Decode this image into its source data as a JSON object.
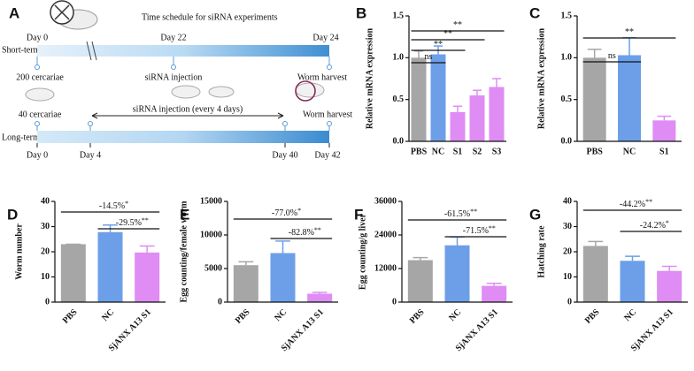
{
  "schematic": {
    "panel": "A",
    "title": "Time schedule for siRNA experiments",
    "short_term": {
      "label": "Short-term",
      "days": [
        "Day 0",
        "Day 22",
        "Day 24"
      ],
      "events": [
        "200 cercariae",
        "siRNA injection",
        "Worm harvest"
      ]
    },
    "long_term": {
      "label": "Long-term",
      "days": [
        "Day 0",
        "Day 4",
        "Day 40",
        "Day 42"
      ],
      "events": [
        "40 cercariae",
        "siRNA injection (every 4 days)",
        "Worm harvest"
      ]
    }
  },
  "chart_data": [
    {
      "panel": "B",
      "type": "bar",
      "y_label": "Relative mRNA expression",
      "categories": [
        "PBS",
        "NC",
        "S1",
        "S2",
        "S3"
      ],
      "values": [
        1.0,
        1.04,
        0.35,
        0.55,
        0.65
      ],
      "errors": [
        0.08,
        0.1,
        0.07,
        0.06,
        0.1
      ],
      "colors": [
        "#a6a6a6",
        "#6c9fe8",
        "#df8cf4",
        "#df8cf4",
        "#df8cf4"
      ],
      "ylim": [
        0,
        1.5
      ],
      "yticks": [
        {
          "value": 0,
          "label": "0.0"
        },
        {
          "value": 0.5,
          "label": "0.5"
        },
        {
          "value": 1,
          "label": "1.0"
        },
        {
          "value": 1.5,
          "label": "1.5"
        }
      ],
      "annotations": [
        {
          "label": "ns"
        },
        {
          "label": "**"
        },
        {
          "label": "**"
        },
        {
          "label": "**"
        }
      ]
    },
    {
      "panel": "C",
      "type": "bar",
      "y_label": "Relative mRNA expression",
      "categories": [
        "PBS",
        "NC",
        "S1"
      ],
      "values": [
        1.0,
        1.03,
        0.25
      ],
      "errors": [
        0.1,
        0.21,
        0.05
      ],
      "colors": [
        "#a6a6a6",
        "#6c9fe8",
        "#df8cf4"
      ],
      "ylim": [
        0,
        1.5
      ],
      "yticks": [
        {
          "value": 0,
          "label": "0.0"
        },
        {
          "value": 0.5,
          "label": "0.5"
        },
        {
          "value": 1,
          "label": "1.0"
        },
        {
          "value": 1.5,
          "label": "1.5"
        }
      ],
      "annotations": [
        {
          "label": "ns"
        },
        {
          "label": "**"
        }
      ]
    },
    {
      "panel": "D",
      "type": "bar",
      "y_label": "Worm number",
      "categories": [
        "PBS",
        "NC",
        "SjANX A13 S1"
      ],
      "values": [
        23,
        27.8,
        19.7
      ],
      "errors": [
        0,
        2.8,
        2.6
      ],
      "colors": [
        "#a6a6a6",
        "#6c9fe8",
        "#df8cf4"
      ],
      "ylim": [
        0,
        40
      ],
      "yticks": [
        0,
        10,
        20,
        30,
        40
      ],
      "annotations": [
        {
          "label": "-14.5%",
          "stars": "*"
        },
        {
          "label": "-29.5%",
          "stars": "**"
        }
      ]
    },
    {
      "panel": "E",
      "type": "bar",
      "y_label": "Egg counting/female worm",
      "categories": [
        "PBS",
        "NC",
        "SjANX A13 S1"
      ],
      "values": [
        5500,
        7300,
        1250
      ],
      "errors": [
        500,
        1800,
        200
      ],
      "colors": [
        "#a6a6a6",
        "#6c9fe8",
        "#df8cf4"
      ],
      "ylim": [
        0,
        15000
      ],
      "yticks": [
        0,
        5000,
        10000,
        15000
      ],
      "annotations": [
        {
          "label": "-77.0%",
          "stars": "*"
        },
        {
          "label": "-82.8%",
          "stars": "**"
        }
      ]
    },
    {
      "panel": "F",
      "type": "bar",
      "y_label": "Egg counting/g liver",
      "categories": [
        "PBS",
        "NC",
        "SjANX A13 S1"
      ],
      "values": [
        15000,
        20300,
        5800
      ],
      "errors": [
        900,
        3000,
        900
      ],
      "colors": [
        "#a6a6a6",
        "#6c9fe8",
        "#df8cf4"
      ],
      "ylim": [
        0,
        36000
      ],
      "yticks": [
        0,
        12000,
        24000,
        36000
      ],
      "annotations": [
        {
          "label": "-61.5%",
          "stars": "**"
        },
        {
          "label": "-71.5%",
          "stars": "**"
        }
      ]
    },
    {
      "panel": "G",
      "type": "bar",
      "y_label": "Hatching rate",
      "categories": [
        "PBS",
        "NC",
        "SjANX A13 S1"
      ],
      "values": [
        22.3,
        16.4,
        12.4
      ],
      "errors": [
        1.8,
        1.8,
        1.8
      ],
      "colors": [
        "#a6a6a6",
        "#6c9fe8",
        "#df8cf4"
      ],
      "ylim": [
        0,
        40
      ],
      "yticks": [
        0,
        10,
        20,
        30,
        40
      ],
      "annotations": [
        {
          "label": "-44.2%",
          "stars": "**"
        },
        {
          "label": "-24.2%",
          "stars": "*"
        }
      ]
    }
  ]
}
